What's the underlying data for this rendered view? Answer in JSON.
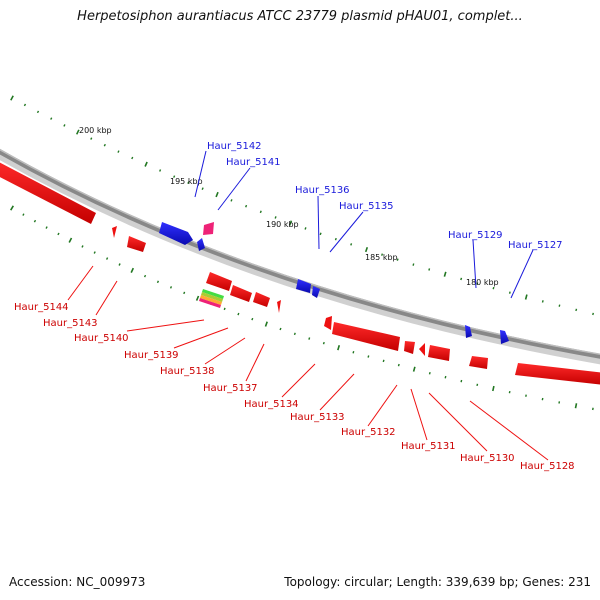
{
  "title": "Herpetosiphon aurantiacus ATCC 23779 plasmid pHAU01, complet...",
  "footer": {
    "accession": "Accession: NC_009973",
    "stats": "Topology: circular; Length: 339,639 bp; Genes: 231"
  },
  "colors": {
    "forward_gene": "#1a1adb",
    "reverse_gene": "#ee1111",
    "backbone": "#8a8a8a",
    "ticks": "#227722",
    "highlight_gene": "#ee2277"
  },
  "scale_labels": [
    "200 kbp",
    "195 kbp",
    "190 kbp",
    "185 kbp",
    "180 kbp"
  ],
  "forward_labels": [
    "Haur_5142",
    "Haur_5141",
    "Haur_5136",
    "Haur_5135",
    "Haur_5129",
    "Haur_5127"
  ],
  "reverse_labels": [
    "Haur_5144",
    "Haur_5143",
    "Haur_5140",
    "Haur_5139",
    "Haur_5138",
    "Haur_5137",
    "Haur_5134",
    "Haur_5133",
    "Haur_5132",
    "Haur_5131",
    "Haur_5130",
    "Haur_5128"
  ]
}
